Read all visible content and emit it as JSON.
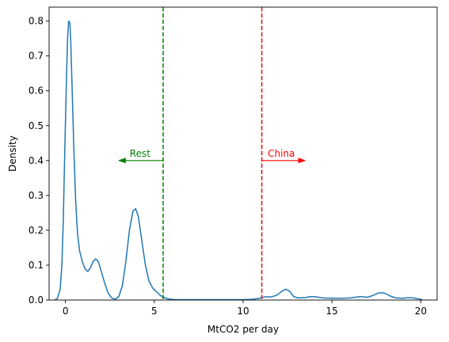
{
  "chart_data": {
    "type": "line",
    "title": "",
    "xlabel": "MtCO2 per day",
    "ylabel": "Density",
    "xlim": [
      -0.92,
      20.92
    ],
    "ylim": [
      0,
      0.84
    ],
    "xticks": [
      0,
      5,
      10,
      15,
      20
    ],
    "yticks": [
      0.0,
      0.1,
      0.2,
      0.3,
      0.4,
      0.5,
      0.6,
      0.7,
      0.8
    ],
    "grid": false,
    "series": [
      {
        "color": "#1f77b4",
        "points": [
          [
            -0.6,
            0.0
          ],
          [
            -0.45,
            0.005
          ],
          [
            -0.3,
            0.03
          ],
          [
            -0.2,
            0.1
          ],
          [
            -0.12,
            0.23
          ],
          [
            -0.05,
            0.4
          ],
          [
            0.05,
            0.62
          ],
          [
            0.12,
            0.75
          ],
          [
            0.18,
            0.8
          ],
          [
            0.25,
            0.795
          ],
          [
            0.3,
            0.74
          ],
          [
            0.38,
            0.6
          ],
          [
            0.48,
            0.42
          ],
          [
            0.58,
            0.28
          ],
          [
            0.68,
            0.19
          ],
          [
            0.8,
            0.14
          ],
          [
            0.95,
            0.11
          ],
          [
            1.1,
            0.09
          ],
          [
            1.25,
            0.082
          ],
          [
            1.4,
            0.092
          ],
          [
            1.55,
            0.11
          ],
          [
            1.7,
            0.118
          ],
          [
            1.85,
            0.11
          ],
          [
            2.0,
            0.085
          ],
          [
            2.2,
            0.05
          ],
          [
            2.4,
            0.02
          ],
          [
            2.6,
            0.006
          ],
          [
            2.8,
            0.002
          ],
          [
            3.0,
            0.01
          ],
          [
            3.2,
            0.04
          ],
          [
            3.4,
            0.11
          ],
          [
            3.6,
            0.2
          ],
          [
            3.8,
            0.255
          ],
          [
            3.95,
            0.262
          ],
          [
            4.1,
            0.24
          ],
          [
            4.3,
            0.17
          ],
          [
            4.5,
            0.1
          ],
          [
            4.7,
            0.055
          ],
          [
            4.9,
            0.035
          ],
          [
            5.1,
            0.025
          ],
          [
            5.3,
            0.015
          ],
          [
            5.5,
            0.008
          ],
          [
            5.8,
            0.003
          ],
          [
            6.2,
            0.001
          ],
          [
            7.0,
            0.001
          ],
          [
            8.0,
            0.001
          ],
          [
            9.0,
            0.001
          ],
          [
            10.0,
            0.001
          ],
          [
            10.5,
            0.002
          ],
          [
            10.9,
            0.005
          ],
          [
            11.2,
            0.009
          ],
          [
            11.6,
            0.009
          ],
          [
            11.9,
            0.014
          ],
          [
            12.2,
            0.026
          ],
          [
            12.4,
            0.031
          ],
          [
            12.6,
            0.026
          ],
          [
            12.85,
            0.01
          ],
          [
            13.1,
            0.006
          ],
          [
            13.5,
            0.007
          ],
          [
            13.8,
            0.01
          ],
          [
            14.1,
            0.009
          ],
          [
            14.5,
            0.006
          ],
          [
            15.0,
            0.005
          ],
          [
            15.5,
            0.005
          ],
          [
            16.0,
            0.006
          ],
          [
            16.3,
            0.008
          ],
          [
            16.6,
            0.01
          ],
          [
            17.0,
            0.008
          ],
          [
            17.3,
            0.013
          ],
          [
            17.6,
            0.02
          ],
          [
            17.8,
            0.021
          ],
          [
            18.0,
            0.019
          ],
          [
            18.3,
            0.011
          ],
          [
            18.6,
            0.006
          ],
          [
            19.0,
            0.005
          ],
          [
            19.3,
            0.007
          ],
          [
            19.6,
            0.006
          ],
          [
            19.9,
            0.003
          ],
          [
            20.1,
            0.001
          ]
        ]
      }
    ],
    "vlines": [
      {
        "x": 5.5,
        "color": "#008000",
        "style": "dashed"
      },
      {
        "x": 11.05,
        "color": "#ff0000",
        "style": "dashed"
      }
    ],
    "annotations": [
      {
        "label": "Rest",
        "color": "#008000",
        "x_from": 5.5,
        "x_to": 2.95,
        "y": 0.4,
        "label_x": 4.2,
        "label_y": 0.42
      },
      {
        "label": "China",
        "color": "#ff0000",
        "x_from": 11.05,
        "x_to": 13.55,
        "y": 0.4,
        "label_x": 12.15,
        "label_y": 0.42
      }
    ]
  }
}
